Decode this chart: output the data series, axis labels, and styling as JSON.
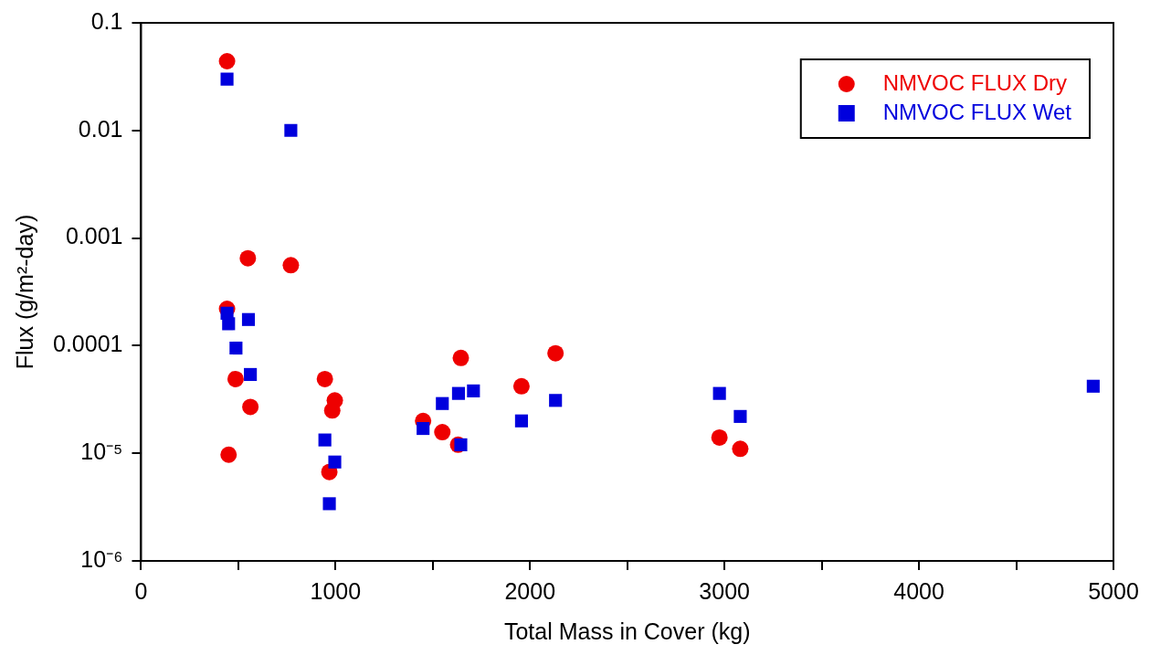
{
  "chart_data": {
    "type": "scatter",
    "xlabel": "Total Mass in Cover (kg)",
    "ylabel": "Flux (g/m²-day)",
    "xlim": [
      0,
      5000
    ],
    "xticks": [
      0,
      {
        "value": 500,
        "label": null
      },
      1000,
      {
        "value": 1500,
        "label": null
      },
      2000,
      {
        "value": 2500,
        "label": null
      },
      3000,
      {
        "value": 3500,
        "label": null
      },
      4000,
      {
        "value": 4500,
        "label": null
      },
      5000
    ],
    "ylim": [
      1e-06,
      0.1
    ],
    "log": "y",
    "yticks": [
      {
        "value": 1e-06,
        "label": "10⁻⁶"
      },
      {
        "value": 1e-05,
        "label": "10⁻⁵"
      },
      0.0001,
      0.001,
      0.01,
      0.1
    ],
    "legend": "top right",
    "series": [
      {
        "name": "NMVOC FLUX Dry",
        "color": "#ee0000",
        "marker": "circle",
        "x": [
          442,
          549,
          770,
          442,
          486,
          562,
          450,
          945,
          996,
          983,
          968,
          1450,
          1549,
          1644,
          1630,
          1956,
          2131,
          2974,
          3081
        ],
        "values": [
          0.044,
          0.00065,
          0.00056,
          0.00022,
          4.9e-05,
          2.7e-05,
          9.7e-06,
          4.9e-05,
          3.1e-05,
          2.5e-05,
          6.7e-06,
          2e-05,
          1.57e-05,
          7.7e-05,
          1.2e-05,
          4.2e-05,
          8.5e-05,
          1.4e-05,
          1.1e-05
        ]
      },
      {
        "name": "NMVOC FLUX Wet",
        "color": "#0000dd",
        "marker": "square",
        "x": [
          442,
          770,
          442,
          450,
          552,
          488,
          562,
          945,
          996,
          968,
          1450,
          1549,
          1632,
          1709,
          1644,
          1956,
          2131,
          2974,
          3081,
          4896
        ],
        "values": [
          0.03,
          0.01,
          0.0002,
          0.00016,
          0.000175,
          9.5e-05,
          5.4e-05,
          1.33e-05,
          8.3e-06,
          3.4e-06,
          1.7e-05,
          2.9e-05,
          3.6e-05,
          3.8e-05,
          1.2e-05,
          2e-05,
          3.1e-05,
          3.6e-05,
          2.2e-05,
          4.2e-05
        ]
      }
    ]
  }
}
